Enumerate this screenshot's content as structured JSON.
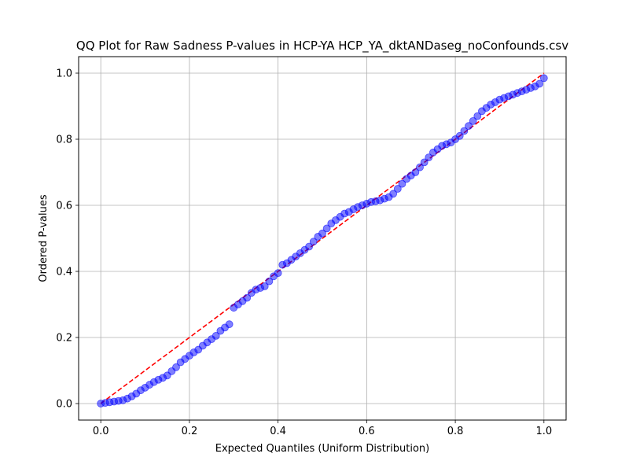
{
  "chart_data": {
    "type": "scatter",
    "title": "QQ Plot for Raw Sadness P-values in HCP-YA HCP_YA_dktANDaseg_noConfounds.csv",
    "xlabel": "Expected Quantiles (Uniform Distribution)",
    "ylabel": "Ordered P-values",
    "xlim": [
      -0.05,
      1.05
    ],
    "ylim": [
      -0.05,
      1.05
    ],
    "x_ticks": [
      "0.0",
      "0.2",
      "0.4",
      "0.6",
      "0.8",
      "1.0"
    ],
    "y_ticks": [
      "0.0",
      "0.2",
      "0.4",
      "0.6",
      "0.8",
      "1.0"
    ],
    "grid": true,
    "legend": "none",
    "point_color": "#0000ff",
    "line_color": "#ff0000",
    "reference_line": {
      "x": [
        0,
        1
      ],
      "y": [
        0,
        1
      ],
      "style": "dashed"
    },
    "series": [
      {
        "x": [
          0.0,
          0.01,
          0.02,
          0.03,
          0.04,
          0.05,
          0.06,
          0.07,
          0.08,
          0.09,
          0.1,
          0.11,
          0.12,
          0.13,
          0.14,
          0.15,
          0.16,
          0.17,
          0.18,
          0.19,
          0.2,
          0.21,
          0.22,
          0.23,
          0.24,
          0.25,
          0.26,
          0.27,
          0.28,
          0.29,
          0.3,
          0.31,
          0.32,
          0.33,
          0.34,
          0.35,
          0.36,
          0.37,
          0.38,
          0.39,
          0.4,
          0.41,
          0.42,
          0.43,
          0.44,
          0.45,
          0.46,
          0.47,
          0.48,
          0.49,
          0.5,
          0.51,
          0.52,
          0.53,
          0.54,
          0.55,
          0.56,
          0.57,
          0.58,
          0.59,
          0.6,
          0.61,
          0.62,
          0.63,
          0.64,
          0.65,
          0.66,
          0.67,
          0.68,
          0.69,
          0.7,
          0.71,
          0.72,
          0.73,
          0.74,
          0.75,
          0.76,
          0.77,
          0.78,
          0.79,
          0.8,
          0.81,
          0.82,
          0.83,
          0.84,
          0.85,
          0.86,
          0.87,
          0.88,
          0.89,
          0.9,
          0.91,
          0.92,
          0.93,
          0.94,
          0.95,
          0.96,
          0.97,
          0.98,
          0.99,
          1.0
        ],
        "y": [
          0.0,
          0.002,
          0.004,
          0.006,
          0.008,
          0.01,
          0.015,
          0.022,
          0.03,
          0.04,
          0.048,
          0.057,
          0.065,
          0.072,
          0.078,
          0.085,
          0.098,
          0.11,
          0.125,
          0.135,
          0.145,
          0.155,
          0.163,
          0.175,
          0.185,
          0.195,
          0.205,
          0.22,
          0.23,
          0.24,
          0.29,
          0.3,
          0.31,
          0.32,
          0.335,
          0.345,
          0.35,
          0.355,
          0.37,
          0.385,
          0.395,
          0.42,
          0.425,
          0.435,
          0.445,
          0.455,
          0.465,
          0.475,
          0.49,
          0.505,
          0.515,
          0.53,
          0.545,
          0.555,
          0.565,
          0.575,
          0.58,
          0.588,
          0.595,
          0.6,
          0.605,
          0.61,
          0.612,
          0.615,
          0.62,
          0.625,
          0.635,
          0.65,
          0.665,
          0.68,
          0.69,
          0.7,
          0.715,
          0.73,
          0.745,
          0.76,
          0.77,
          0.78,
          0.785,
          0.79,
          0.8,
          0.81,
          0.825,
          0.84,
          0.855,
          0.87,
          0.885,
          0.895,
          0.905,
          0.912,
          0.92,
          0.925,
          0.93,
          0.935,
          0.94,
          0.945,
          0.95,
          0.955,
          0.96,
          0.968,
          0.985
        ]
      }
    ]
  }
}
